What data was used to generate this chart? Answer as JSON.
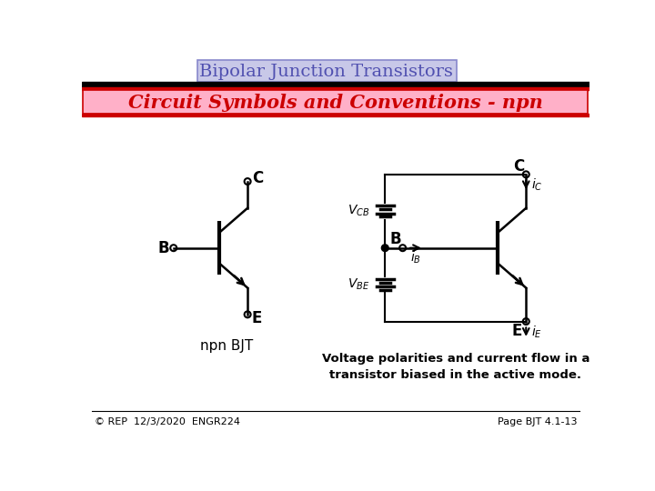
{
  "title": "Bipolar Junction Transistors",
  "subtitle": "Circuit Symbols and Conventions - npn",
  "title_bg": "#c8c8e8",
  "subtitle_bg": "#ffb0c8",
  "title_color": "#5050b0",
  "subtitle_color": "#cc0000",
  "footer_left": "© REP  12/3/2020  ENGR224",
  "footer_right": "Page BJT 4.1-13",
  "bg_color": "#ffffff",
  "npn_label": "npn BJT",
  "voltage_label": "Voltage polarities and current flow in a\ntransistor biased in the active mode.",
  "C_label": "C",
  "B_label": "B",
  "E_label": "E"
}
